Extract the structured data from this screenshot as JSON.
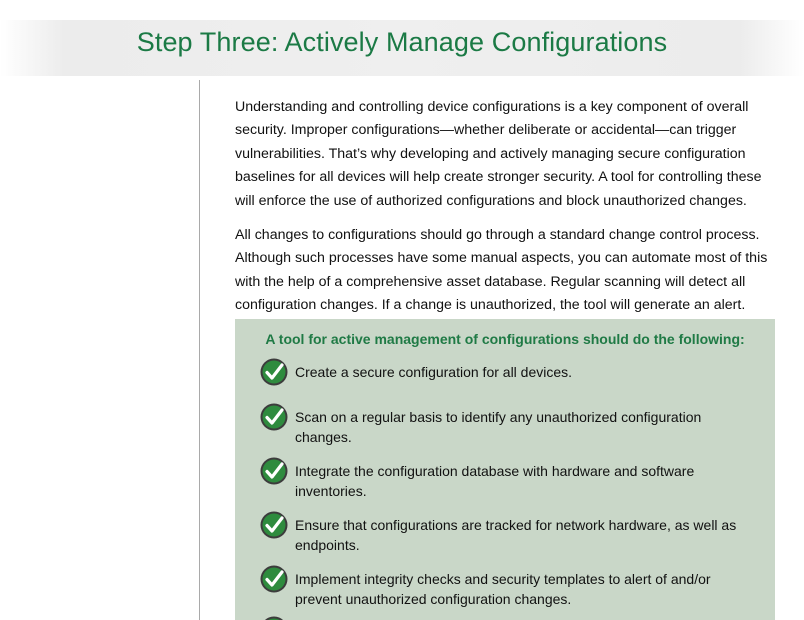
{
  "title": "Step Three: Actively Manage Configurations",
  "paragraphs": [
    "Understanding and controlling device configurations is a key component of overall security. Improper configurations—whether deliberate or accidental—can trigger vulnerabilities. That’s why developing and actively managing secure configuration baselines for all devices will help create stronger security. A tool for controlling these will enforce the use of authorized configurations and block unauthorized changes.",
    "All changes to configurations should go through a standard change control process. Although such processes have some manual aspects, you can automate most of this with the help of a comprehensive asset database. Regular scanning will detect all configuration changes. If a change is unauthorized, the tool will generate an alert."
  ],
  "box": {
    "heading": "A tool for active management of configurations should do the following:",
    "items": [
      "Create a secure configuration for all devices.",
      "Scan on a regular basis to identify any unauthorized configuration changes.",
      "Integrate the configuration database with hardware and software inventories.",
      "Ensure that configurations are tracked for network hardware, as well as endpoints.",
      "Implement integrity checks and security templates to alert of and/or prevent unauthorized configuration changes."
    ],
    "check_icon": "green-checkmark-icon",
    "colors": {
      "box_background": "#c9d7c8",
      "accent_green": "#1b7a45",
      "check_circle": "#2e8b3e"
    }
  }
}
